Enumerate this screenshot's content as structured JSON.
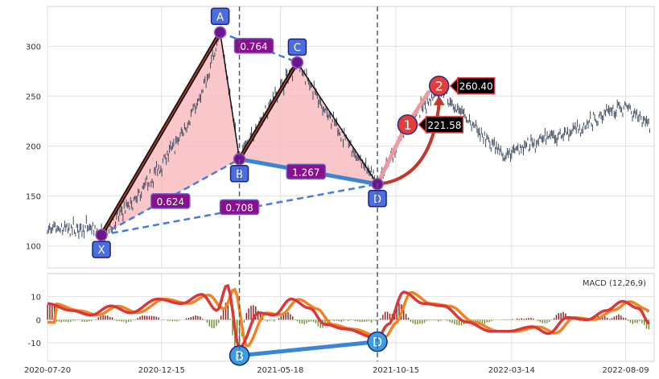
{
  "chart_data": [
    {
      "type": "line",
      "panel": "price",
      "title": "",
      "xlabel": "",
      "ylabel": "",
      "y_ticks": [
        100,
        150,
        200,
        250,
        300
      ],
      "ylim": [
        78,
        340
      ],
      "grid": true,
      "colors": {
        "price": "#3d4a5c",
        "leg": "#111111",
        "pattern_fill": "#f7b8bd",
        "ratio_line": "#4a7bd6",
        "bd_line": "#3a86d4",
        "label_bg": "#8a0f8a",
        "point_box": "#4a6ee0",
        "point_dot": "#6a168f",
        "target_red": "#e53c3c",
        "target_pink": "#f09aa0",
        "vline": "#4f5d73"
      },
      "pattern_points": [
        {
          "label": "X",
          "date": "2020-09-28",
          "value": 111
        },
        {
          "label": "A",
          "date": "2021-03-01",
          "value": 314
        },
        {
          "label": "B",
          "date": "2021-03-26",
          "value": 187
        },
        {
          "label": "C",
          "date": "2021-06-09",
          "value": 284
        },
        {
          "label": "D",
          "date": "2021-09-21",
          "value": 162
        }
      ],
      "ratios": [
        {
          "label": "0.624",
          "from": "X",
          "to": "B"
        },
        {
          "label": "0.764",
          "from": "A",
          "to": "C"
        },
        {
          "label": "1.267",
          "from": "B",
          "to": "D"
        },
        {
          "label": "0.708",
          "from": "X",
          "to": "D"
        }
      ],
      "targets": [
        {
          "label": "1",
          "value_label": "221.58",
          "date": "2021-10-30",
          "value": 221.58
        },
        {
          "label": "2",
          "value_label": "260.40",
          "date": "2021-12-10",
          "value": 260.4
        }
      ],
      "vertical_lines": [
        "2021-03-26",
        "2021-09-21"
      ]
    },
    {
      "type": "bar",
      "panel": "macd",
      "legend": "MACD (12,26,9)",
      "y_ticks": [
        -10,
        0,
        10
      ],
      "ylim": [
        -18,
        20
      ],
      "x_ticks": [
        "2020-07-20",
        "2020-12-15",
        "2021-05-18",
        "2021-10-15",
        "2022-03-14",
        "2022-08-09"
      ],
      "xlim": [
        "2020-07-20",
        "2022-09-15"
      ],
      "colors": {
        "macd": "#d93838",
        "signal": "#f58220",
        "hist_pos": "#8b1a1a",
        "hist_neg": "#6b8e23"
      },
      "pattern_points": [
        {
          "label": "B",
          "date": "2021-03-26",
          "value": -15.5
        },
        {
          "label": "D",
          "date": "2021-09-21",
          "value": -9.5
        }
      ]
    }
  ]
}
